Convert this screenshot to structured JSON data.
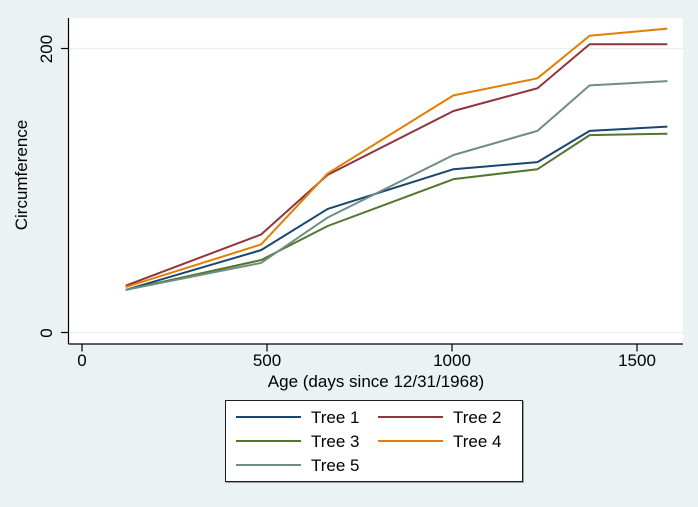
{
  "window": {
    "background_color": "#eaf2f3"
  },
  "chart_data": {
    "type": "line",
    "title": "",
    "xlabel": "Age (days since 12/31/1968)",
    "ylabel": "Circumference",
    "x": [
      118,
      484,
      664,
      1004,
      1231,
      1372,
      1582
    ],
    "series": [
      {
        "name": "Tree 1",
        "color": "#1a476f",
        "values": [
          30,
          58,
          87,
          115,
          120,
          142,
          145
        ]
      },
      {
        "name": "Tree 2",
        "color": "#90353b",
        "values": [
          33,
          69,
          111,
          156,
          172,
          203,
          203
        ]
      },
      {
        "name": "Tree 3",
        "color": "#55752f",
        "values": [
          30,
          51,
          75,
          108,
          115,
          139,
          140
        ]
      },
      {
        "name": "Tree 4",
        "color": "#e37e00",
        "values": [
          32,
          62,
          112,
          167,
          179,
          209,
          214
        ]
      },
      {
        "name": "Tree 5",
        "color": "#6e8e84",
        "values": [
          30,
          49,
          81,
          125,
          142,
          174,
          177
        ]
      }
    ],
    "x_ticks": [
      0,
      500,
      1000,
      1500
    ],
    "y_ticks": [
      0,
      200
    ],
    "xlim": [
      0,
      1620
    ],
    "ylim": [
      0,
      221
    ],
    "grid": true,
    "legend_position": "bottom",
    "theme": {
      "plot_background": "#ffffff",
      "outer_background": "#eaf2f3",
      "grid_color": "#e7f0f1",
      "axis_color": "#000000",
      "line_width": 2
    }
  }
}
